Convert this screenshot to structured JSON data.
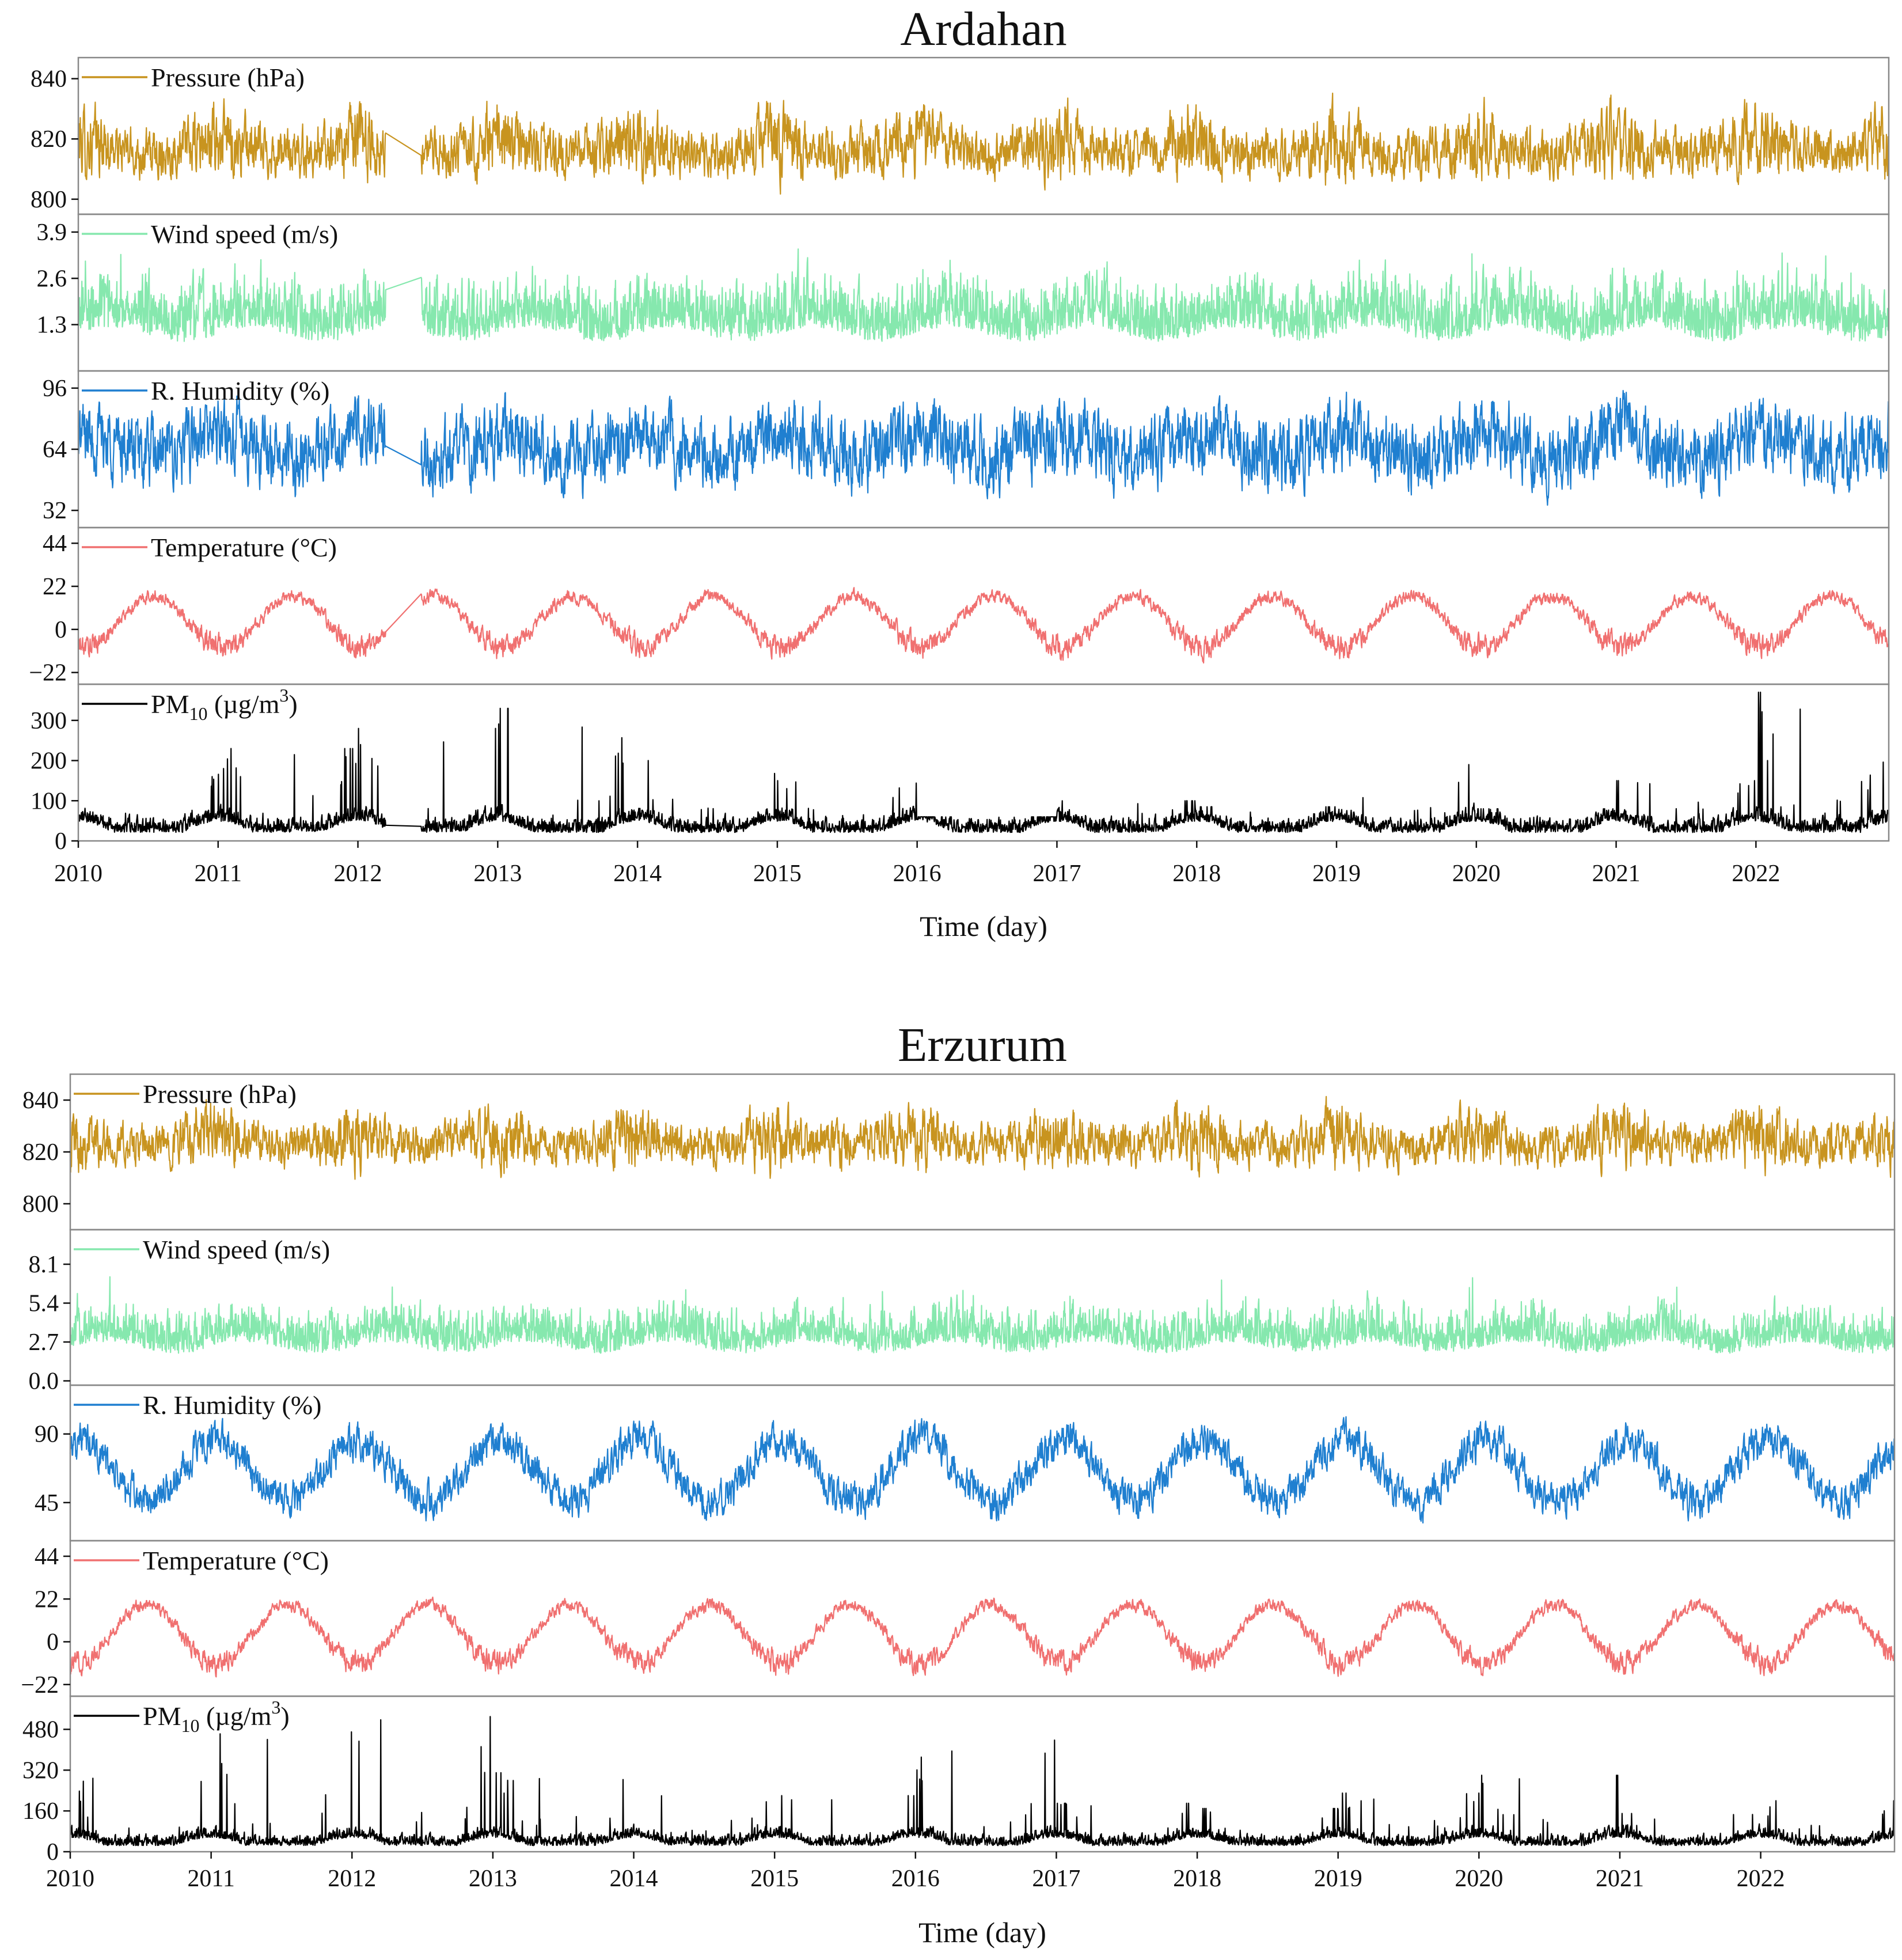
{
  "chart_data": [
    {
      "type": "line",
      "title": "Ardahan",
      "xlabel": "Time (day)",
      "x_ticks": [
        "2010",
        "2011",
        "2012",
        "2013",
        "2014",
        "2015",
        "2016",
        "2017",
        "2018",
        "2019",
        "2020",
        "2021",
        "2022"
      ],
      "xlim": [
        2010,
        2022.95
      ],
      "gap": [
        2012.2,
        2012.45
      ],
      "panels": [
        {
          "label": "Pressure (hPa)",
          "color": "#C8941F",
          "ylim": [
            795,
            847
          ],
          "yticks": [
            "840",
            "820",
            "800"
          ],
          "ytick_values": [
            840,
            820,
            800
          ],
          "kind": "pressure",
          "base": 817,
          "amp": 6,
          "seasonal": 2
        },
        {
          "label": "Wind speed (m/s)",
          "color": "#86E8AE",
          "ylim": [
            0.0,
            4.4
          ],
          "yticks": [
            "3.9",
            "2.6",
            "1.3"
          ],
          "ytick_values": [
            3.9,
            2.6,
            1.3
          ],
          "kind": "wind",
          "base": 1.3,
          "amp": 0.9,
          "seasonal": 0.2
        },
        {
          "label": "R. Humidity (%)",
          "color": "#1F7FD0",
          "ylim": [
            23,
            105
          ],
          "yticks": [
            "96",
            "64",
            "32"
          ],
          "ytick_values": [
            96,
            64,
            32
          ],
          "kind": "humidity",
          "base": 66,
          "amp": 14,
          "seasonal": 6
        },
        {
          "label": "Temperature (°C)",
          "color": "#F07070",
          "ylim": [
            -28,
            52
          ],
          "yticks": [
            "44",
            "22",
            "0",
            "−22"
          ],
          "ytick_values": [
            44,
            22,
            0,
            -22
          ],
          "kind": "temp",
          "base": 4,
          "amp": 2.5,
          "seasonal": 13
        },
        {
          "label": "PM",
          "label_sub": "10",
          "label_unit": " (µg/m",
          "label_sup": "3",
          "label_end": ")",
          "color": "#000000",
          "ylim": [
            0,
            390
          ],
          "yticks": [
            "300",
            "200",
            "100",
            "0"
          ],
          "ytick_values": [
            300,
            200,
            100,
            0
          ],
          "kind": "pm",
          "base": 35,
          "amp": 25,
          "seasonal": 0,
          "winter_peaks": {
            "2010": 160,
            "2011": 230,
            "2012": 280,
            "2013": 330,
            "2014": 200,
            "2015": 150,
            "2016": 60,
            "2017": 100,
            "2018": 85,
            "2019": 190,
            "2020": 80,
            "2021": 150,
            "2022": 370
          }
        }
      ]
    },
    {
      "type": "line",
      "title": "Erzurum",
      "xlabel": "Time (day)",
      "x_ticks": [
        "2010",
        "2011",
        "2012",
        "2013",
        "2014",
        "2015",
        "2016",
        "2017",
        "2018",
        "2019",
        "2020",
        "2021",
        "2022"
      ],
      "xlim": [
        2010,
        2022.95
      ],
      "gap": null,
      "panels": [
        {
          "label": "Pressure (hPa)",
          "color": "#C8941F",
          "ylim": [
            790,
            850
          ],
          "yticks": [
            "840",
            "820",
            "800"
          ],
          "ytick_values": [
            840,
            820,
            800
          ],
          "kind": "pressure",
          "base": 824,
          "amp": 6,
          "seasonal": 2
        },
        {
          "label": "Wind speed (m/s)",
          "color": "#86E8AE",
          "ylim": [
            -0.3,
            10.5
          ],
          "yticks": [
            "8.1",
            "5.4",
            "2.7",
            "0.0"
          ],
          "ytick_values": [
            8.1,
            5.4,
            2.7,
            0.0
          ],
          "kind": "wind",
          "base": 2.8,
          "amp": 1.6,
          "seasonal": 0.4
        },
        {
          "label": "R. Humidity (%)",
          "color": "#1F7FD0",
          "ylim": [
            20,
            122
          ],
          "yticks": [
            "90",
            "45"
          ],
          "ytick_values": [
            90,
            45
          ],
          "kind": "humidity",
          "base": 66,
          "amp": 9,
          "seasonal": 20
        },
        {
          "label": "Temperature (°C)",
          "color": "#F07070",
          "ylim": [
            -28,
            52
          ],
          "yticks": [
            "44",
            "22",
            "0",
            "−22"
          ],
          "ytick_values": [
            44,
            22,
            0,
            -22
          ],
          "kind": "temp",
          "base": 4,
          "amp": 2.5,
          "seasonal": 15
        },
        {
          "label": "PM",
          "label_sub": "10",
          "label_unit": " (µg/m",
          "label_sup": "3",
          "label_end": ")",
          "color": "#000000",
          "ylim": [
            0,
            610
          ],
          "yticks": [
            "480",
            "320",
            "160",
            "0"
          ],
          "ytick_values": [
            480,
            320,
            160,
            0
          ],
          "kind": "pm",
          "base": 40,
          "amp": 30,
          "seasonal": 0,
          "winter_peaks": {
            "2010": 300,
            "2011": 470,
            "2012": 530,
            "2013": 310,
            "2014": 240,
            "2015": 220,
            "2016": 440,
            "2017": 190,
            "2018": 170,
            "2019": 230,
            "2020": 300,
            "2021": 150,
            "2022": 200
          }
        }
      ]
    }
  ]
}
